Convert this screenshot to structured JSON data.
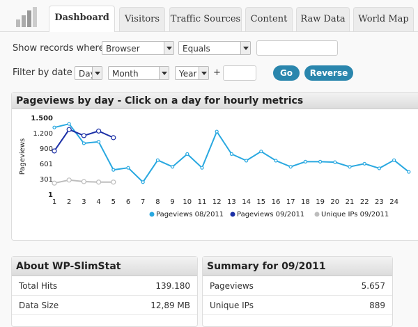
{
  "tabs": [
    "Dashboard",
    "Visitors",
    "Traffic Sources",
    "Content",
    "Raw Data",
    "World Map"
  ],
  "filters": {
    "records_label": "Show records where",
    "field": "Browser",
    "operator": "Equals",
    "date_label": "Filter by date",
    "day": "Day",
    "month": "Month",
    "year": "Year",
    "plus": "+",
    "go": "Go",
    "reverse": "Reverse"
  },
  "chart_panel": {
    "title": "Pageviews by day - Click on a day for hourly metrics"
  },
  "chart_data": {
    "type": "line",
    "y_label": "Pageviews",
    "categories": [
      "1",
      "2",
      "3",
      "4",
      "5",
      "6",
      "7",
      "8",
      "9",
      "10",
      "11",
      "12",
      "13",
      "14",
      "15",
      "16",
      "17",
      "18",
      "19",
      "20",
      "21",
      "22",
      "23",
      "24",
      null
    ],
    "ylim": [
      1,
      1500
    ],
    "yticks": [
      1,
      301,
      601,
      900,
      {
        "value": 1200,
        "label": "1.200"
      },
      {
        "value": 1500,
        "label": "1.500"
      }
    ],
    "series": [
      {
        "name": "Pageviews 08/2011",
        "color": "#29a8e0",
        "values": [
          1320,
          1390,
          1010,
          1040,
          490,
          530,
          250,
          680,
          550,
          800,
          530,
          1240,
          800,
          670,
          850,
          670,
          550,
          650,
          650,
          640,
          550,
          610,
          520,
          680,
          450
        ]
      },
      {
        "name": "Pageviews 09/2011",
        "color": "#1b2fa6",
        "values": [
          860,
          1280,
          1160,
          1250,
          1120,
          null,
          null,
          null,
          null,
          null,
          null,
          null,
          null,
          null,
          null,
          null,
          null,
          null,
          null,
          null,
          null,
          null,
          null,
          null,
          null
        ]
      },
      {
        "name": "Unique IPs 09/2011",
        "color": "#bdbdbd",
        "values": [
          230,
          290,
          260,
          250,
          250,
          null,
          null,
          null,
          null,
          null,
          null,
          null,
          null,
          null,
          null,
          null,
          null,
          null,
          null,
          null,
          null,
          null,
          null,
          null,
          null
        ]
      }
    ]
  },
  "about": {
    "title": "About WP-SlimStat",
    "rows": [
      [
        "Total Hits",
        "139.180"
      ],
      [
        "Data Size",
        "12,89 MB"
      ]
    ]
  },
  "summary": {
    "title": "Summary for 09/2011",
    "rows": [
      [
        "Pageviews",
        "5.657"
      ],
      [
        "Unique IPs",
        "889"
      ]
    ]
  }
}
